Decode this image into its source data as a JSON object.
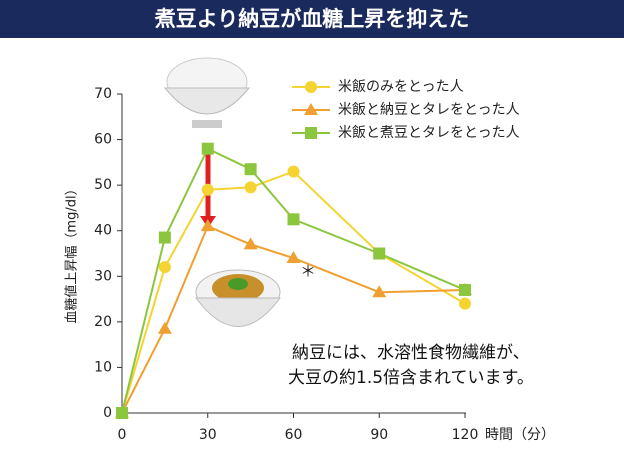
{
  "chart_data": {
    "type": "line",
    "title": "煮豆より納豆が血糖上昇を抑えた",
    "y_label": "血糖値上昇幅（mg/dl）",
    "x_label": "時間（分）",
    "x": [
      0,
      15,
      30,
      45,
      60,
      90,
      120
    ],
    "xlim": [
      0,
      120
    ],
    "xticks": [
      0,
      30,
      60,
      90,
      120
    ],
    "ylim": [
      0,
      70
    ],
    "yticks": [
      0,
      10,
      20,
      30,
      40,
      50,
      60,
      70
    ],
    "legend": "upper right",
    "series": [
      {
        "name": "米飯のみをとった人",
        "color": "#f5d330",
        "marker": "circle",
        "values": [
          0,
          32,
          49,
          49.5,
          53,
          35,
          24
        ]
      },
      {
        "name": "米飯と納豆とタレをとった人",
        "color": "#f0a030",
        "marker": "triangle",
        "values": [
          0,
          18.5,
          41,
          37,
          34,
          26.5,
          27
        ]
      },
      {
        "name": "米飯と煮豆とタレをとった人",
        "color": "#8cc63f",
        "marker": "square",
        "values": [
          0,
          38.5,
          58,
          53.5,
          42.5,
          35,
          27
        ]
      }
    ],
    "annotations": [
      "＊",
      "納豆には、水溶性食物繊維が、",
      "大豆の約1.5倍含まれています。"
    ]
  }
}
